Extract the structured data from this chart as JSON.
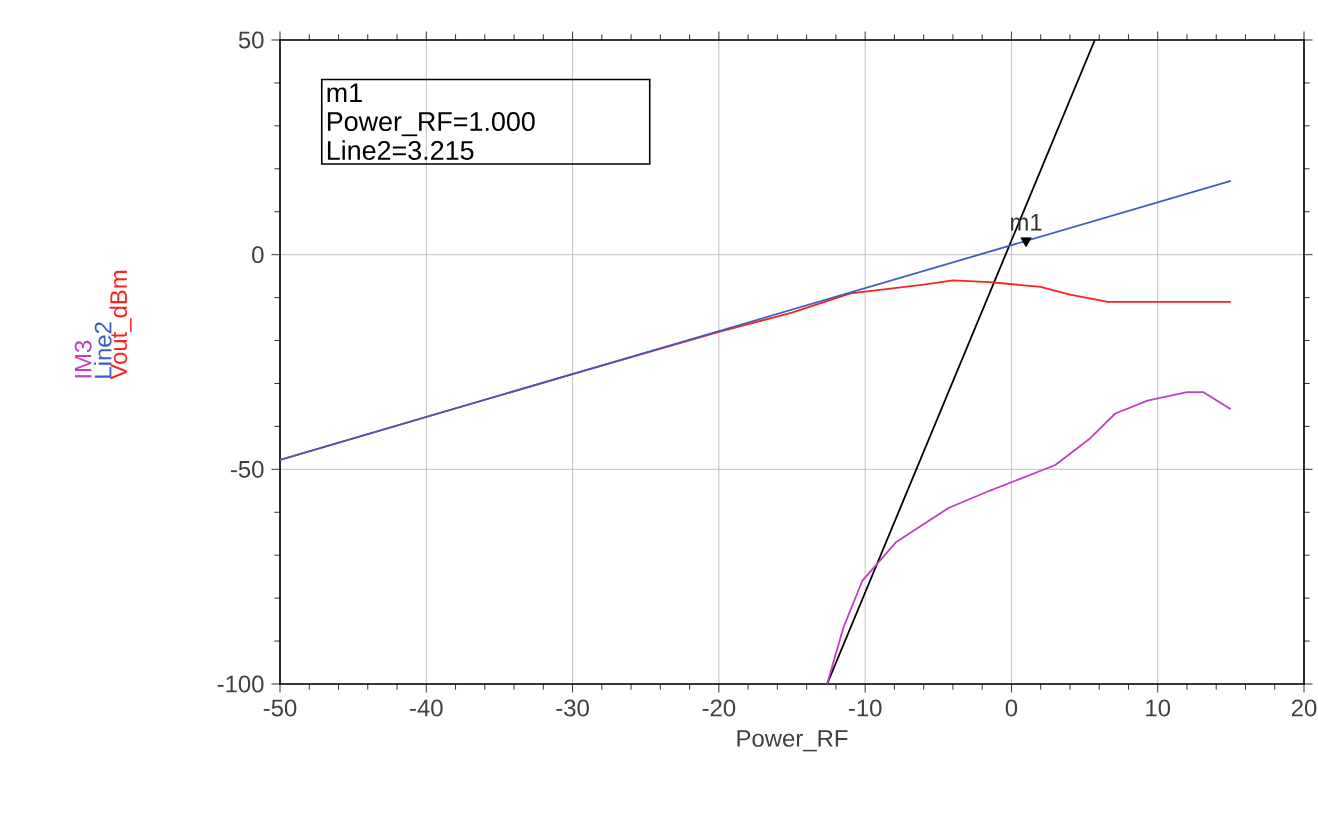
{
  "chart_data": {
    "type": "line",
    "xlabel": "Power_RF",
    "xlim": [
      -50,
      20
    ],
    "ylim": [
      -100,
      50
    ],
    "xticks": [
      -50,
      -40,
      -30,
      -20,
      -10,
      0,
      10,
      20
    ],
    "yticks": [
      -100,
      -50,
      0,
      50
    ],
    "grid": true,
    "series": [
      {
        "name": "IM3",
        "color": "#c040c0",
        "x": [
          -12.6,
          -11.5,
          -10.2,
          -7.9,
          -4.3,
          -1.5,
          3,
          5.3,
          7.1,
          9.3,
          12,
          13.1,
          15
        ],
        "values": [
          -100,
          -87,
          -76,
          -67,
          -59,
          -55,
          -49,
          -43,
          -37,
          -34,
          -32,
          -32,
          -36
        ]
      },
      {
        "name": "Line2",
        "color": "#3a5fbf",
        "x": [
          -50,
          15
        ],
        "values": [
          -47.8,
          17.2
        ]
      },
      {
        "name": "Vout_dBm",
        "color": "#ff2020",
        "x": [
          -50,
          -30,
          -20,
          -15,
          -11,
          -6,
          -4,
          -1.5,
          2,
          4,
          6.6,
          15
        ],
        "values": [
          -47.8,
          -27.8,
          -18,
          -13.5,
          -9,
          -7,
          -6,
          -6.4,
          -7.5,
          -9.3,
          -11,
          -11
        ]
      },
      {
        "type": "line",
        "color": "#000000",
        "x": [
          -12.6,
          5.7
        ],
        "values": [
          -100,
          50
        ]
      },
      {
        "type": "scatter",
        "color": "#000000",
        "marker": "triangle",
        "x": [
          1
        ],
        "values": [
          3.215
        ]
      }
    ],
    "annotations": [
      {
        "text": "m1",
        "x": 1,
        "y": 3.215
      },
      "m1",
      "Power_RF=1.000",
      "Line2=3.215"
    ]
  }
}
